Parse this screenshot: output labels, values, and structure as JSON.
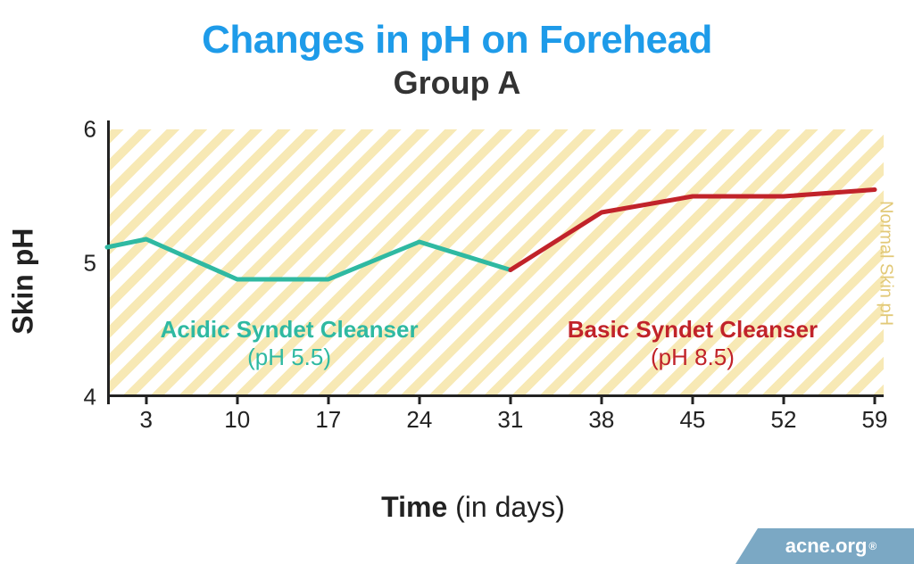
{
  "title": "Changes in pH on Forehead",
  "subtitle": "Group A",
  "watermark": "acne.org",
  "axes": {
    "y_label": "Skin pH",
    "x_label_bold": "Time",
    "x_label_rest": " (in days)",
    "ylim": [
      4,
      6
    ],
    "y_ticks": [
      4,
      5,
      6
    ],
    "y_tick_labels": [
      "4",
      "5",
      "6"
    ],
    "x_ticks": [
      3,
      10,
      17,
      24,
      31,
      38,
      45,
      52,
      59
    ],
    "x_tick_labels": [
      "3",
      "10",
      "17",
      "24",
      "31",
      "38",
      "45",
      "52",
      "59"
    ],
    "xlim": [
      0,
      59
    ],
    "axis_color": "#222222",
    "tick_fontsize": 26,
    "label_fontsize": 32
  },
  "band": {
    "y_from": 4.0,
    "y_to": 6.0,
    "stripe_color": "#f6e5a8",
    "gap_color": "#ffffff",
    "label": "Normal Skin pH",
    "label_color": "#e2c978"
  },
  "series": [
    {
      "id": "acidic",
      "name": "Acidic Syndet Cleanser",
      "ph_label": "(pH 5.5)",
      "color": "#2fb9a2",
      "line_width": 5,
      "points": [
        {
          "x": 0,
          "y": 5.12
        },
        {
          "x": 3,
          "y": 5.18
        },
        {
          "x": 10,
          "y": 4.88
        },
        {
          "x": 17,
          "y": 4.88
        },
        {
          "x": 24,
          "y": 5.16
        },
        {
          "x": 31,
          "y": 4.95
        }
      ],
      "label_pos": {
        "x": 14,
        "y": 4.4
      }
    },
    {
      "id": "basic",
      "name": "Basic Syndet Cleanser",
      "ph_label": "(pH 8.5)",
      "color": "#c1232a",
      "line_width": 5,
      "points": [
        {
          "x": 31,
          "y": 4.95
        },
        {
          "x": 38,
          "y": 5.38
        },
        {
          "x": 45,
          "y": 5.5
        },
        {
          "x": 52,
          "y": 5.5
        },
        {
          "x": 59,
          "y": 5.55
        }
      ],
      "label_pos": {
        "x": 45,
        "y": 4.4
      }
    }
  ],
  "background_color": "#ffffff"
}
